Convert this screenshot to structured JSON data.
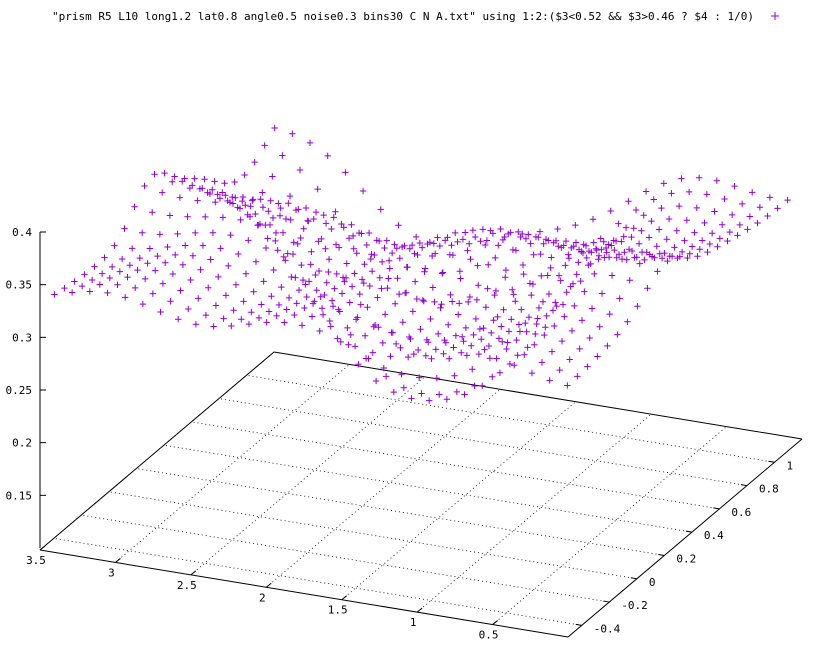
{
  "chart_data": {
    "type": "scatter",
    "legend_placement": "top-right",
    "series": [
      {
        "name": "\"prism R5 L10 long1.2 lat0.8 angle0.5 noise0.3 bins30 C N A.txt\" using 1:2:($3<0.52 && $3>0.46 ? $4 : 1/0)",
        "color": "#9400d3",
        "marker": "plus",
        "surface": {
          "x_range": [
            0.05,
            3.45
          ],
          "y_range": [
            -0.45,
            1.15
          ],
          "nx": 30,
          "ny": 23,
          "base_z": 0.34,
          "dip_center": [
            2.2,
            0.9
          ],
          "dip_depth": 0.23,
          "ridge_center_y": 0.25,
          "ridge_height": 0.035
        }
      }
    ],
    "axes": {
      "x": {
        "range": [
          0,
          3.5
        ],
        "ticks": [
          "0.5",
          "1",
          "1.5",
          "2",
          "2.5",
          "3",
          "3.5"
        ],
        "tick_values": [
          0.5,
          1,
          1.5,
          2,
          2.5,
          3,
          3.5
        ]
      },
      "y": {
        "range": [
          -0.5,
          1.2
        ],
        "ticks": [
          "-0.4",
          "-0.2",
          "0",
          "0.2",
          "0.4",
          "0.6",
          "0.8",
          "1"
        ],
        "tick_values": [
          -0.4,
          -0.2,
          0,
          0.2,
          0.4,
          0.6,
          0.8,
          1
        ]
      },
      "z": {
        "range": [
          0.1,
          0.4
        ],
        "ticks": [
          "0.15",
          "0.2",
          "0.25",
          "0.3",
          "0.35",
          "0.4"
        ],
        "tick_values": [
          0.15,
          0.2,
          0.25,
          0.3,
          0.35,
          0.4
        ]
      }
    },
    "grid": true
  }
}
